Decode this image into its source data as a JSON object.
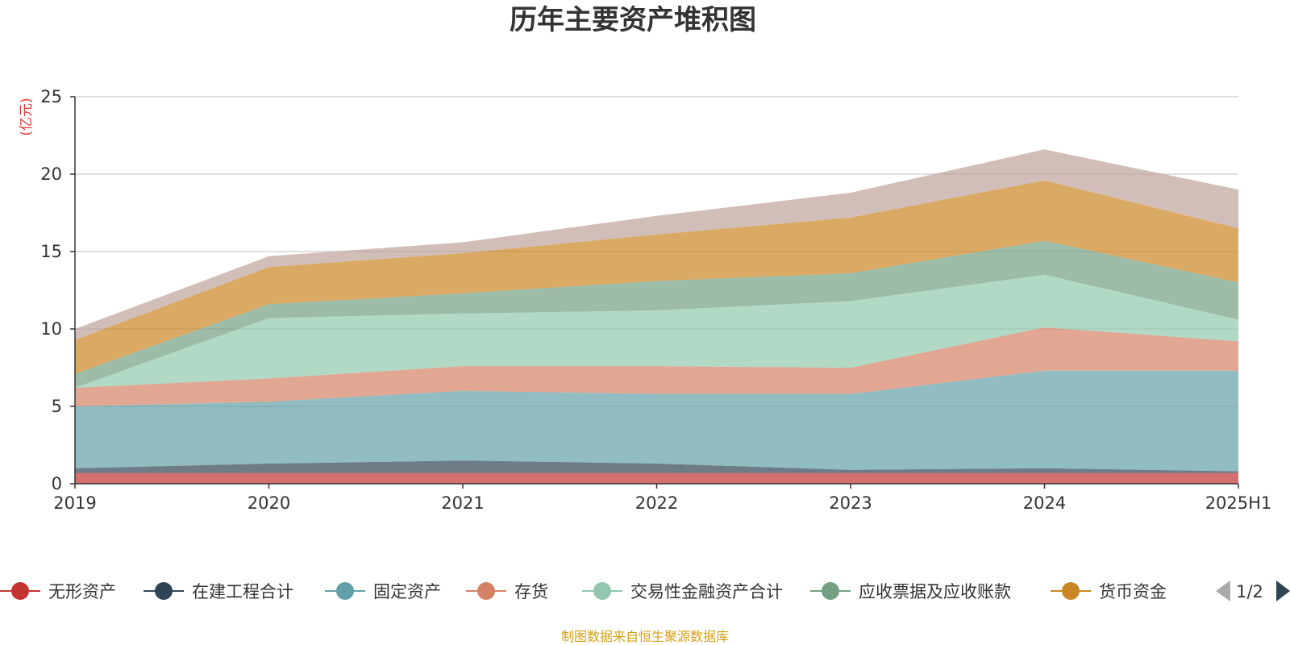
{
  "chart_data": {
    "type": "area",
    "stacked": true,
    "title": "历年主要资产堆积图",
    "y_unit": "(亿元)",
    "categories": [
      "2019",
      "2020",
      "2021",
      "2022",
      "2023",
      "2024",
      "2025H1"
    ],
    "ylim": [
      0,
      25
    ],
    "yticks": [
      0,
      5,
      10,
      15,
      20,
      25
    ],
    "grid": true,
    "series": [
      {
        "name": "无形资产",
        "color": "#c23531",
        "values": [
          0.7,
          0.7,
          0.7,
          0.7,
          0.7,
          0.7,
          0.7
        ]
      },
      {
        "name": "在建工程合计",
        "color": "#2f4554",
        "values": [
          0.3,
          0.6,
          0.8,
          0.6,
          0.2,
          0.3,
          0.1
        ]
      },
      {
        "name": "固定资产",
        "color": "#61a0a8",
        "values": [
          4.0,
          4.0,
          4.5,
          4.5,
          4.9,
          6.3,
          6.5
        ]
      },
      {
        "name": "存货",
        "color": "#d48265",
        "values": [
          1.2,
          1.5,
          1.6,
          1.8,
          1.7,
          2.8,
          1.9
        ]
      },
      {
        "name": "交易性金融资产合计",
        "color": "#91c7ae",
        "values": [
          0.0,
          3.9,
          3.4,
          3.6,
          4.3,
          3.4,
          1.4
        ]
      },
      {
        "name": "应收票据及应收账款",
        "color": "#749f83",
        "values": [
          0.9,
          0.9,
          1.3,
          1.9,
          1.8,
          2.2,
          2.4
        ]
      },
      {
        "name": "货币资金",
        "color": "#ca8622",
        "values": [
          2.2,
          2.4,
          2.6,
          3.0,
          3.6,
          3.9,
          3.5
        ]
      },
      {
        "name": "",
        "color": "#bda29a",
        "values": [
          0.7,
          0.7,
          0.7,
          1.2,
          1.6,
          2.0,
          2.5
        ]
      }
    ],
    "legend_position": "bottom",
    "legend_page": "1/2"
  },
  "source_note": "制图数据来自恒生聚源数据库",
  "legend_nav": {
    "prev_icon": "triangle-left-icon",
    "next_icon": "triangle-right-icon",
    "page_label": "1/2"
  }
}
